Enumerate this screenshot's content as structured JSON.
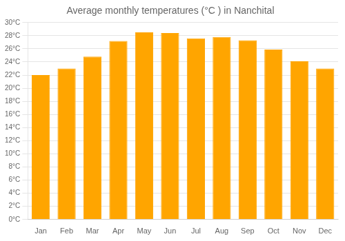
{
  "chart_data": {
    "type": "bar",
    "title": "Average monthly temperatures (°C ) in Nanchital",
    "categories": [
      "Jan",
      "Feb",
      "Mar",
      "Apr",
      "May",
      "Jun",
      "Jul",
      "Aug",
      "Sep",
      "Oct",
      "Nov",
      "Dec"
    ],
    "values": [
      22,
      23,
      24.8,
      27.2,
      28.5,
      28.4,
      27.6,
      27.8,
      27.3,
      25.9,
      24.1,
      23
    ],
    "color": "#FFA500",
    "ylim": [
      0,
      30
    ],
    "yticks": [
      {
        "value": 0,
        "label": "0°C"
      },
      {
        "value": 2,
        "label": "2°C"
      },
      {
        "value": 4,
        "label": "4°C"
      },
      {
        "value": 6,
        "label": "6°C"
      },
      {
        "value": 8,
        "label": "8°C"
      },
      {
        "value": 10,
        "label": "10°C"
      },
      {
        "value": 12,
        "label": "12°C"
      },
      {
        "value": 14,
        "label": "14°C"
      },
      {
        "value": 16,
        "label": "16°C"
      },
      {
        "value": 18,
        "label": "18°C"
      },
      {
        "value": 20,
        "label": "20°C"
      },
      {
        "value": 22,
        "label": "22°C"
      },
      {
        "value": 24,
        "label": "24°C"
      },
      {
        "value": 26,
        "label": "26°C"
      },
      {
        "value": 28,
        "label": "28°C"
      },
      {
        "value": 30,
        "label": "30°C"
      }
    ],
    "grid": true
  }
}
